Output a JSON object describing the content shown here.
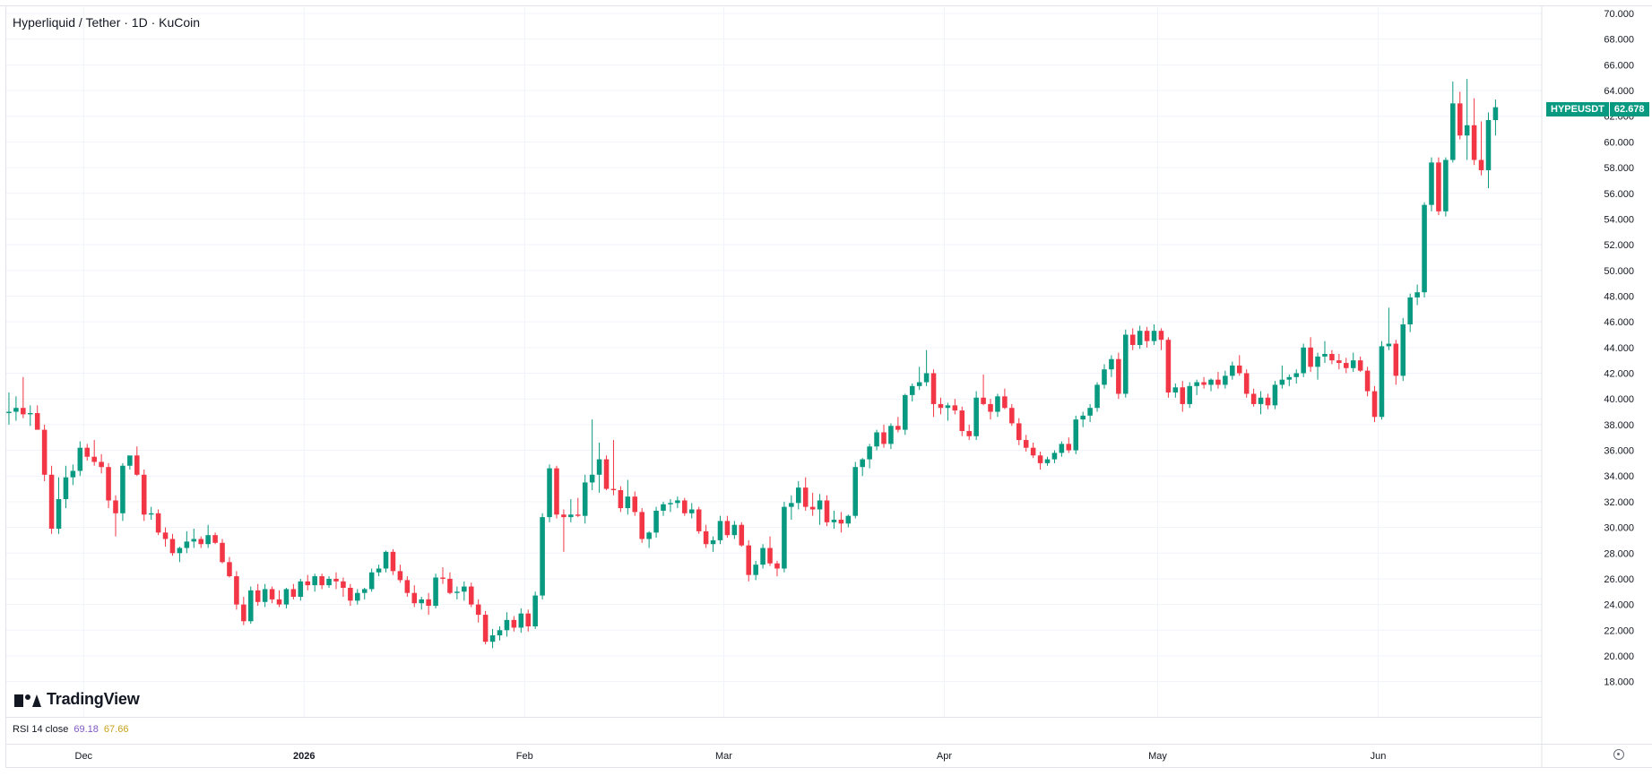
{
  "header": {
    "symbol_title": "Hyperliquid / Tether · 1D · KuCoin"
  },
  "brand": {
    "logo_text": "TradingView"
  },
  "price_tag": {
    "symbol": "HYPEUSDT",
    "last_price": "62.678",
    "color": "#089981"
  },
  "rsi": {
    "label": "RSI 14 close",
    "value_1": "69.18",
    "value_2": "67.66"
  },
  "colors": {
    "up": "#089981",
    "down": "#f23645",
    "grid": "#f0f3fa"
  },
  "chart_data": {
    "type": "candlestick",
    "title": "Hyperliquid / Tether · 1D · KuCoin",
    "ylim": [
      17,
      70
    ],
    "yticks": [
      "18.000",
      "20.000",
      "22.000",
      "24.000",
      "26.000",
      "28.000",
      "30.000",
      "32.000",
      "34.000",
      "36.000",
      "38.000",
      "40.000",
      "42.000",
      "44.000",
      "46.000",
      "48.000",
      "50.000",
      "52.000",
      "54.000",
      "56.000",
      "58.000",
      "60.000",
      "62.000",
      "64.000",
      "66.000",
      "68.000",
      "70.000"
    ],
    "x_start_date": "2025-11-20",
    "x_end_date": "2026-06-24",
    "xticks": [
      {
        "label": "Dec",
        "date": "2025-12-01"
      },
      {
        "label": "2026",
        "date": "2026-01-01"
      },
      {
        "label": "Feb",
        "date": "2026-02-01"
      },
      {
        "label": "Mar",
        "date": "2026-03-01"
      },
      {
        "label": "Apr",
        "date": "2026-04-01"
      },
      {
        "label": "May",
        "date": "2026-05-01"
      },
      {
        "label": "Jun",
        "date": "2026-06-01"
      }
    ],
    "first_date": "2025-11-20",
    "candles": [
      [
        38.9,
        40.5,
        38.0,
        39.0
      ],
      [
        39.0,
        40.2,
        38.3,
        39.3
      ],
      [
        39.3,
        41.7,
        38.5,
        38.8
      ],
      [
        38.8,
        39.5,
        37.9,
        38.9
      ],
      [
        38.9,
        39.5,
        37.8,
        37.6
      ],
      [
        37.6,
        38.0,
        33.6,
        34.1
      ],
      [
        34.1,
        34.8,
        29.5,
        29.9
      ],
      [
        29.9,
        33.9,
        29.5,
        32.2
      ],
      [
        32.2,
        34.8,
        31.5,
        33.9
      ],
      [
        33.9,
        34.9,
        33.3,
        34.4
      ],
      [
        34.4,
        36.7,
        34.0,
        36.2
      ],
      [
        36.2,
        36.5,
        35.2,
        35.5
      ],
      [
        35.5,
        36.8,
        34.8,
        35.1
      ],
      [
        35.1,
        35.7,
        34.2,
        34.7
      ],
      [
        34.7,
        35.0,
        31.5,
        32.1
      ],
      [
        32.1,
        32.5,
        29.3,
        31.1
      ],
      [
        31.1,
        35.0,
        30.5,
        34.8
      ],
      [
        34.8,
        35.5,
        34.5,
        35.6
      ],
      [
        35.6,
        36.3,
        34.0,
        34.1
      ],
      [
        34.1,
        34.5,
        30.5,
        31.0
      ],
      [
        31.0,
        31.6,
        30.6,
        31.1
      ],
      [
        31.1,
        31.4,
        29.4,
        29.6
      ],
      [
        29.6,
        30.0,
        28.5,
        29.1
      ],
      [
        29.1,
        29.5,
        27.8,
        28.0
      ],
      [
        28.0,
        28.5,
        27.3,
        28.4
      ],
      [
        28.4,
        29.7,
        28.0,
        28.9
      ],
      [
        28.9,
        29.9,
        28.4,
        29.1
      ],
      [
        29.1,
        29.3,
        28.4,
        28.7
      ],
      [
        28.7,
        30.2,
        28.4,
        29.4
      ],
      [
        29.4,
        29.6,
        28.7,
        28.8
      ],
      [
        28.8,
        29.1,
        27.2,
        27.3
      ],
      [
        27.3,
        27.7,
        26.1,
        26.2
      ],
      [
        26.2,
        26.6,
        23.6,
        24.0
      ],
      [
        24.0,
        24.6,
        22.4,
        22.7
      ],
      [
        22.7,
        25.4,
        22.5,
        25.1
      ],
      [
        25.1,
        25.6,
        23.9,
        24.2
      ],
      [
        24.2,
        25.6,
        23.8,
        25.2
      ],
      [
        25.2,
        25.4,
        24.1,
        24.4
      ],
      [
        24.4,
        25.1,
        23.8,
        24.0
      ],
      [
        24.0,
        25.3,
        23.7,
        25.2
      ],
      [
        25.2,
        25.6,
        24.4,
        24.6
      ],
      [
        24.6,
        26.0,
        24.3,
        25.8
      ],
      [
        25.8,
        26.3,
        25.1,
        25.5
      ],
      [
        25.5,
        26.4,
        25.0,
        26.2
      ],
      [
        26.2,
        26.4,
        25.2,
        25.5
      ],
      [
        25.5,
        26.2,
        25.3,
        26.0
      ],
      [
        26.0,
        26.5,
        25.2,
        25.8
      ],
      [
        25.8,
        26.1,
        24.6,
        25.3
      ],
      [
        25.3,
        25.6,
        23.9,
        24.3
      ],
      [
        24.3,
        25.2,
        24.0,
        24.9
      ],
      [
        24.9,
        25.3,
        24.4,
        25.2
      ],
      [
        25.2,
        26.8,
        25.0,
        26.5
      ],
      [
        26.5,
        27.1,
        26.2,
        26.8
      ],
      [
        26.8,
        28.2,
        26.5,
        28.1
      ],
      [
        28.1,
        28.3,
        26.3,
        26.6
      ],
      [
        26.6,
        27.1,
        25.7,
        25.9
      ],
      [
        25.9,
        26.2,
        24.6,
        24.9
      ],
      [
        24.9,
        25.5,
        23.8,
        24.1
      ],
      [
        24.1,
        24.6,
        23.6,
        24.4
      ],
      [
        24.4,
        24.9,
        23.2,
        23.9
      ],
      [
        23.9,
        26.4,
        23.7,
        26.1
      ],
      [
        26.1,
        26.9,
        25.6,
        26.0
      ],
      [
        26.0,
        26.5,
        24.8,
        24.9
      ],
      [
        24.9,
        25.4,
        24.4,
        25.0
      ],
      [
        25.0,
        25.8,
        24.3,
        25.4
      ],
      [
        25.4,
        25.7,
        23.8,
        24.0
      ],
      [
        24.0,
        24.4,
        22.6,
        23.2
      ],
      [
        23.2,
        23.5,
        20.9,
        21.1
      ],
      [
        21.1,
        22.1,
        20.6,
        21.6
      ],
      [
        21.6,
        22.3,
        21.2,
        22.0
      ],
      [
        22.0,
        23.4,
        21.5,
        22.8
      ],
      [
        22.8,
        23.1,
        21.9,
        22.2
      ],
      [
        22.2,
        23.7,
        21.8,
        23.3
      ],
      [
        23.3,
        23.6,
        21.9,
        22.3
      ],
      [
        22.3,
        25.0,
        22.1,
        24.7
      ],
      [
        24.7,
        31.1,
        24.4,
        30.8
      ],
      [
        30.8,
        34.9,
        30.4,
        34.6
      ],
      [
        34.6,
        34.8,
        30.7,
        31.0
      ],
      [
        31.0,
        31.4,
        28.1,
        30.8
      ],
      [
        30.8,
        32.2,
        30.4,
        31.0
      ],
      [
        31.0,
        32.3,
        30.8,
        30.9
      ],
      [
        30.9,
        34.1,
        30.3,
        33.5
      ],
      [
        33.5,
        38.4,
        32.9,
        34.1
      ],
      [
        34.1,
        36.6,
        32.7,
        35.3
      ],
      [
        35.3,
        35.6,
        32.9,
        33.0
      ],
      [
        33.0,
        36.8,
        32.5,
        32.9
      ],
      [
        32.9,
        33.2,
        31.2,
        31.5
      ],
      [
        31.5,
        33.7,
        31.0,
        32.4
      ],
      [
        32.4,
        32.8,
        30.9,
        31.2
      ],
      [
        31.2,
        31.5,
        28.8,
        29.1
      ],
      [
        29.1,
        29.7,
        28.4,
        29.6
      ],
      [
        29.6,
        31.6,
        29.2,
        31.3
      ],
      [
        31.3,
        32.0,
        30.9,
        31.8
      ],
      [
        31.8,
        32.2,
        31.2,
        31.9
      ],
      [
        31.9,
        32.4,
        31.5,
        32.1
      ],
      [
        32.1,
        32.3,
        30.9,
        31.1
      ],
      [
        31.1,
        31.9,
        30.7,
        31.4
      ],
      [
        31.4,
        31.6,
        29.5,
        29.7
      ],
      [
        29.7,
        30.2,
        28.4,
        28.7
      ],
      [
        28.7,
        29.3,
        28.1,
        29.0
      ],
      [
        29.0,
        30.9,
        28.7,
        30.5
      ],
      [
        30.5,
        30.9,
        29.2,
        29.4
      ],
      [
        29.4,
        30.5,
        29.1,
        30.2
      ],
      [
        30.2,
        30.4,
        28.5,
        28.6
      ],
      [
        28.6,
        29.0,
        25.8,
        26.3
      ],
      [
        26.3,
        27.4,
        25.9,
        27.1
      ],
      [
        27.1,
        28.7,
        26.8,
        28.4
      ],
      [
        28.4,
        29.3,
        27.0,
        27.2
      ],
      [
        27.2,
        27.4,
        26.2,
        26.8
      ],
      [
        26.8,
        32.0,
        26.5,
        31.6
      ],
      [
        31.6,
        32.5,
        30.6,
        31.9
      ],
      [
        31.9,
        33.6,
        31.4,
        33.1
      ],
      [
        33.1,
        33.9,
        31.3,
        31.6
      ],
      [
        31.6,
        32.7,
        30.9,
        31.4
      ],
      [
        31.4,
        32.6,
        30.2,
        32.1
      ],
      [
        32.1,
        32.5,
        30.1,
        30.4
      ],
      [
        30.4,
        31.3,
        29.9,
        30.6
      ],
      [
        30.6,
        31.2,
        29.6,
        30.3
      ],
      [
        30.3,
        31.0,
        30.0,
        30.9
      ],
      [
        30.9,
        35.1,
        30.7,
        34.7
      ],
      [
        34.7,
        35.4,
        34.0,
        35.3
      ],
      [
        35.3,
        36.5,
        34.6,
        36.3
      ],
      [
        36.3,
        37.6,
        36.0,
        37.4
      ],
      [
        37.4,
        38.0,
        36.2,
        36.5
      ],
      [
        36.5,
        38.1,
        36.1,
        37.9
      ],
      [
        37.9,
        38.6,
        37.4,
        37.6
      ],
      [
        37.6,
        40.4,
        37.2,
        40.3
      ],
      [
        40.3,
        41.2,
        39.8,
        41.0
      ],
      [
        41.0,
        42.5,
        40.7,
        41.3
      ],
      [
        41.3,
        43.8,
        41.0,
        42.0
      ],
      [
        42.0,
        42.3,
        38.6,
        39.6
      ],
      [
        39.6,
        40.1,
        38.8,
        39.3
      ],
      [
        39.3,
        39.7,
        38.3,
        39.5
      ],
      [
        39.5,
        40.0,
        38.8,
        39.1
      ],
      [
        39.1,
        39.4,
        37.1,
        37.5
      ],
      [
        37.5,
        38.0,
        36.8,
        37.1
      ],
      [
        37.1,
        40.6,
        36.8,
        40.1
      ],
      [
        40.1,
        41.9,
        39.5,
        39.6
      ],
      [
        39.6,
        40.0,
        38.4,
        39.0
      ],
      [
        39.0,
        40.4,
        38.6,
        40.2
      ],
      [
        40.2,
        40.8,
        39.2,
        39.3
      ],
      [
        39.3,
        39.6,
        37.9,
        38.1
      ],
      [
        38.1,
        38.5,
        36.4,
        36.8
      ],
      [
        36.8,
        37.2,
        35.9,
        36.2
      ],
      [
        36.2,
        36.6,
        35.4,
        35.6
      ],
      [
        35.6,
        35.9,
        34.5,
        35.0
      ],
      [
        35.0,
        35.5,
        34.8,
        35.3
      ],
      [
        35.3,
        36.0,
        35.0,
        35.8
      ],
      [
        35.8,
        36.7,
        35.5,
        36.5
      ],
      [
        36.5,
        37.0,
        35.8,
        36.0
      ],
      [
        36.0,
        38.7,
        35.7,
        38.4
      ],
      [
        38.4,
        39.0,
        37.8,
        38.7
      ],
      [
        38.7,
        39.6,
        38.2,
        39.3
      ],
      [
        39.3,
        41.3,
        39.0,
        41.1
      ],
      [
        41.1,
        42.7,
        40.8,
        42.3
      ],
      [
        42.3,
        43.4,
        41.7,
        43.1
      ],
      [
        43.1,
        43.6,
        40.0,
        40.4
      ],
      [
        40.4,
        45.4,
        40.1,
        45.0
      ],
      [
        45.0,
        45.5,
        43.8,
        44.2
      ],
      [
        44.2,
        45.7,
        43.9,
        45.3
      ],
      [
        45.3,
        45.6,
        44.0,
        44.5
      ],
      [
        44.5,
        45.8,
        44.2,
        45.3
      ],
      [
        45.3,
        45.5,
        43.8,
        44.6
      ],
      [
        44.6,
        44.8,
        40.1,
        40.5
      ],
      [
        40.5,
        41.2,
        40.1,
        40.9
      ],
      [
        40.9,
        41.4,
        39.0,
        39.6
      ],
      [
        39.6,
        41.3,
        39.3,
        41.0
      ],
      [
        41.0,
        41.5,
        40.3,
        41.3
      ],
      [
        41.3,
        41.7,
        40.8,
        41.1
      ],
      [
        41.1,
        41.6,
        40.6,
        41.5
      ],
      [
        41.5,
        42.1,
        40.8,
        41.1
      ],
      [
        41.1,
        42.2,
        40.8,
        41.8
      ],
      [
        41.8,
        42.9,
        41.5,
        42.6
      ],
      [
        42.6,
        43.4,
        41.8,
        42.0
      ],
      [
        42.0,
        42.3,
        40.1,
        40.4
      ],
      [
        40.4,
        40.8,
        39.4,
        39.6
      ],
      [
        39.6,
        40.6,
        38.8,
        40.1
      ],
      [
        40.1,
        40.4,
        39.2,
        39.5
      ],
      [
        39.5,
        41.4,
        39.2,
        41.1
      ],
      [
        41.1,
        42.6,
        40.8,
        41.5
      ],
      [
        41.5,
        41.9,
        41.0,
        41.7
      ],
      [
        41.7,
        42.3,
        41.2,
        42.0
      ],
      [
        42.0,
        44.3,
        41.7,
        44.0
      ],
      [
        44.0,
        44.8,
        42.1,
        42.5
      ],
      [
        42.5,
        43.6,
        41.5,
        43.3
      ],
      [
        43.3,
        44.5,
        42.8,
        43.5
      ],
      [
        43.5,
        43.8,
        42.7,
        43.0
      ],
      [
        43.0,
        43.5,
        42.3,
        42.8
      ],
      [
        42.8,
        43.2,
        42.0,
        42.4
      ],
      [
        42.4,
        43.6,
        42.1,
        43.0
      ],
      [
        43.0,
        43.3,
        42.1,
        42.2
      ],
      [
        42.2,
        42.5,
        40.2,
        40.6
      ],
      [
        40.6,
        41.0,
        38.2,
        38.6
      ],
      [
        38.6,
        44.5,
        38.4,
        44.1
      ],
      [
        44.1,
        47.1,
        43.8,
        44.3
      ],
      [
        44.3,
        44.6,
        41.1,
        41.8
      ],
      [
        41.8,
        46.3,
        41.4,
        45.8
      ],
      [
        45.8,
        48.2,
        45.2,
        47.9
      ],
      [
        47.9,
        48.9,
        47.3,
        48.3
      ],
      [
        48.3,
        55.3,
        47.9,
        55.1
      ],
      [
        55.1,
        58.8,
        54.6,
        58.4
      ],
      [
        58.4,
        58.8,
        54.3,
        54.6
      ],
      [
        54.6,
        58.8,
        54.2,
        58.6
      ],
      [
        58.6,
        64.7,
        58.4,
        63.0
      ],
      [
        63.0,
        63.9,
        60.2,
        60.5
      ],
      [
        60.5,
        64.9,
        58.6,
        61.3
      ],
      [
        61.3,
        63.4,
        58.2,
        58.6
      ],
      [
        58.6,
        61.6,
        57.4,
        57.8
      ],
      [
        57.8,
        62.3,
        56.4,
        61.7
      ],
      [
        61.7,
        63.3,
        60.5,
        62.7
      ]
    ]
  }
}
